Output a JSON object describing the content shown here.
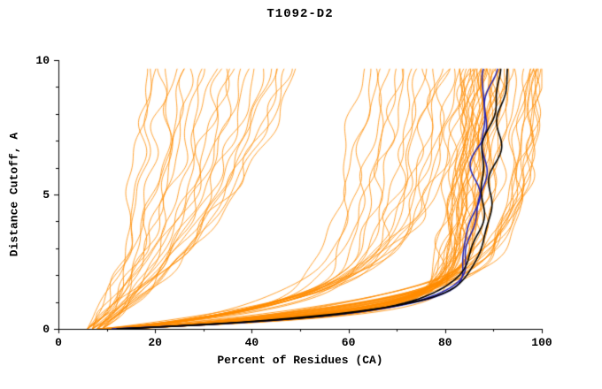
{
  "header": {
    "title": "T1092-D2"
  },
  "chart_data": {
    "type": "line",
    "title": "T1092-D2",
    "xlabel": "Percent of Residues (CA)",
    "ylabel": "Distance Cutoff, A",
    "xlim": [
      0,
      100
    ],
    "ylim": [
      0,
      10
    ],
    "x_ticks": [
      0,
      20,
      40,
      60,
      80,
      100
    ],
    "y_ticks": [
      0,
      5,
      10
    ],
    "x_minor_step": 10,
    "y_minor_step": 1,
    "grid": false,
    "legend": "none",
    "y_max_drawn": 9.7,
    "curve_model": "x(y) = xk - (xk - x0) * exp(-y / t1) + (xmax - xk) * (y / 10); params per curve: [x0, xk, xmax, t1]",
    "colors": {
      "model_ensemble": "#ff8c00",
      "highlight_blue": "#2222b2",
      "highlight_black": "#000000",
      "axis": "#000000",
      "background": "#ffffff"
    },
    "series_groups": [
      {
        "name": "predicted-models-ensemble",
        "color": "#ff8c00",
        "line_width": 0.8,
        "curves": [
          [
            10,
            80,
            88,
            0.5
          ],
          [
            11,
            82,
            90,
            0.6
          ],
          [
            9,
            78,
            86,
            0.45
          ],
          [
            12,
            84,
            92,
            0.7
          ],
          [
            8,
            79,
            85,
            0.4
          ],
          [
            13,
            81,
            89,
            0.55
          ],
          [
            10,
            83,
            91,
            0.65
          ],
          [
            11,
            79,
            87,
            0.5
          ],
          [
            9,
            85,
            93,
            0.75
          ],
          [
            12,
            80,
            88,
            0.45
          ],
          [
            10,
            78,
            86,
            0.55
          ],
          [
            14,
            82,
            90,
            0.6
          ],
          [
            8,
            76,
            84,
            0.4
          ],
          [
            11,
            86,
            94,
            0.8
          ],
          [
            13,
            79,
            87,
            0.5
          ],
          [
            9,
            81,
            89,
            0.6
          ],
          [
            12,
            83,
            91,
            0.65
          ],
          [
            10,
            77,
            85,
            0.45
          ],
          [
            11,
            84,
            92,
            0.7
          ],
          [
            8,
            80,
            88,
            0.55
          ],
          [
            15,
            82,
            90,
            0.6
          ],
          [
            9,
            79,
            87,
            0.4
          ],
          [
            12,
            87,
            95,
            0.85
          ],
          [
            10,
            81,
            89,
            0.6
          ],
          [
            13,
            85,
            93,
            0.7
          ],
          [
            11,
            78,
            86,
            0.5
          ],
          [
            9,
            83,
            91,
            0.6
          ],
          [
            14,
            80,
            88,
            0.55
          ],
          [
            10,
            84,
            92,
            0.75
          ],
          [
            12,
            78,
            86,
            0.45
          ],
          [
            10,
            79,
            87,
            0.5
          ],
          [
            12,
            81,
            89,
            0.65
          ],
          [
            9,
            80,
            88,
            0.55
          ],
          [
            11,
            83,
            91,
            0.7
          ],
          [
            13,
            78,
            86,
            0.5
          ],
          [
            12,
            90,
            98,
            0.9
          ],
          [
            15,
            93,
            100,
            1.1
          ],
          [
            10,
            89,
            97,
            0.8
          ],
          [
            13,
            92,
            99,
            1.0
          ],
          [
            11,
            94,
            100,
            1.2
          ],
          [
            14,
            90,
            98,
            0.85
          ],
          [
            9,
            91,
            99,
            0.95
          ],
          [
            16,
            95,
            100,
            1.3
          ],
          [
            12,
            89,
            97,
            0.75
          ],
          [
            15,
            92,
            99,
            1.05
          ],
          [
            14,
            96,
            99.5,
            1.2
          ],
          [
            12,
            95,
            99,
            1.0
          ],
          [
            10,
            65,
            75,
            0.9
          ],
          [
            12,
            70,
            80,
            1.1
          ],
          [
            9,
            60,
            70,
            0.8
          ],
          [
            14,
            72,
            82,
            1.3
          ],
          [
            11,
            55,
            65,
            0.9
          ],
          [
            13,
            68,
            78,
            1.2
          ],
          [
            8,
            62,
            72,
            0.7
          ],
          [
            15,
            74,
            84,
            1.5
          ],
          [
            10,
            58,
            68,
            0.9
          ],
          [
            12,
            66,
            76,
            1.0
          ],
          [
            9,
            71,
            81,
            1.3
          ],
          [
            14,
            53,
            63,
            0.8
          ],
          [
            11,
            69,
            79,
            1.1
          ],
          [
            13,
            73,
            83,
            1.4
          ],
          [
            10,
            61,
            71,
            0.9
          ],
          [
            8,
            56,
            66,
            0.7
          ],
          [
            12,
            64,
            74,
            1.0
          ],
          [
            15,
            67,
            77,
            1.2
          ],
          [
            11,
            59,
            69,
            0.85
          ],
          [
            13,
            75,
            85,
            1.5
          ],
          [
            7,
            20,
            25,
            3.0
          ],
          [
            8,
            28,
            35,
            3.5
          ],
          [
            6,
            16,
            20,
            2.5
          ],
          [
            9,
            36,
            45,
            4.0
          ],
          [
            7,
            24,
            30,
            3.2
          ],
          [
            8,
            40,
            50,
            4.5
          ],
          [
            6,
            22,
            28,
            2.8
          ],
          [
            9,
            30,
            38,
            3.6
          ],
          [
            7,
            17,
            22,
            2.4
          ],
          [
            8,
            45,
            55,
            5.0
          ],
          [
            6,
            26,
            33,
            3.1
          ],
          [
            9,
            34,
            42,
            3.9
          ],
          [
            7,
            38,
            48,
            4.4
          ],
          [
            8,
            21,
            26,
            2.7
          ],
          [
            6,
            29,
            36,
            3.3
          ],
          [
            9,
            42,
            52,
            4.8
          ],
          [
            7,
            32,
            40,
            3.7
          ],
          [
            8,
            19,
            24,
            2.6
          ],
          [
            6,
            35,
            44,
            4.1
          ],
          [
            9,
            25,
            31,
            3.0
          ],
          [
            7,
            44,
            54,
            5.2
          ],
          [
            8,
            30,
            37,
            3.4
          ],
          [
            6,
            21,
            27,
            2.8
          ],
          [
            9,
            38,
            47,
            4.3
          ],
          [
            6,
            14,
            18,
            2.2
          ],
          [
            7,
            15,
            19,
            2.3
          ]
        ]
      },
      {
        "name": "highlighted-models-blue",
        "color": "#2222b2",
        "line_width": 1.5,
        "curves": [
          [
            11,
            83,
            89,
            0.5
          ],
          [
            12,
            84,
            90,
            0.55
          ]
        ]
      },
      {
        "name": "highlighted-models-black",
        "color": "#000000",
        "line_width": 1.6,
        "curves": [
          [
            12,
            84,
            91,
            0.55
          ],
          [
            13,
            86,
            93,
            0.6
          ]
        ]
      }
    ]
  }
}
